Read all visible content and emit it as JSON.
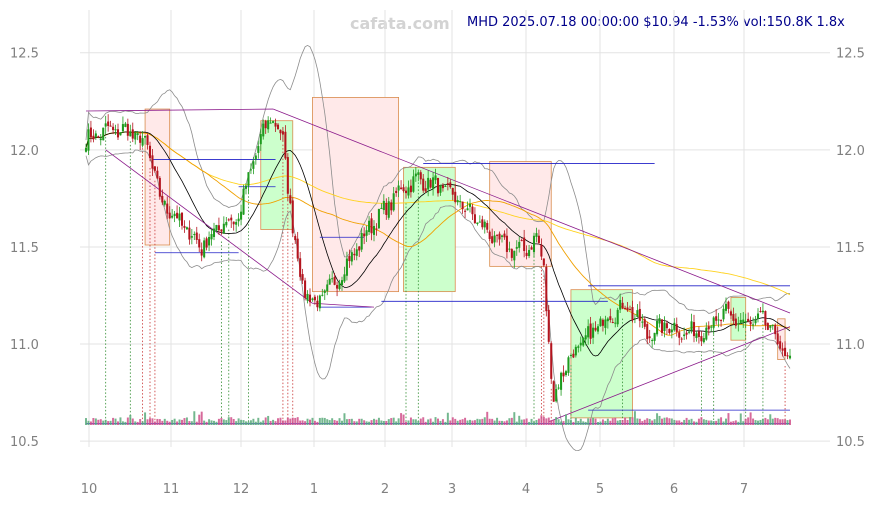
{
  "watermark": "cafata.com",
  "header": {
    "info_line": "MHD 2025.07.18 00:00:00 $10.94 -1.53% vol:150.8K 1.8x"
  },
  "chart_data": {
    "type": "candlestick",
    "symbol": "MHD",
    "last_date": "2025.07.18 00:00:00",
    "last_price": 10.94,
    "change_pct": -1.53,
    "volume": "150.8K",
    "volume_ratio": "1.8x",
    "ylim": [
      10.47,
      12.72
    ],
    "y_ticks": [
      "10.5",
      "11.0",
      "11.5",
      "12.0",
      "12.5"
    ],
    "y_tick_values": [
      10.5,
      11.0,
      11.5,
      12.0,
      12.5
    ],
    "x_ticks": [
      "10",
      "11",
      "12",
      "1",
      "2",
      "3",
      "4",
      "5",
      "6",
      "7"
    ],
    "price_path": [
      {
        "day": 0,
        "price": 12.05
      },
      {
        "day": 8,
        "price": 12.1
      },
      {
        "day": 17,
        "price": 12.1
      },
      {
        "day": 25,
        "price": 12.02
      },
      {
        "day": 30,
        "price": 11.75
      },
      {
        "day": 40,
        "price": 11.6
      },
      {
        "day": 47,
        "price": 11.5
      },
      {
        "day": 55,
        "price": 11.62
      },
      {
        "day": 62,
        "price": 11.65
      },
      {
        "day": 68,
        "price": 11.95
      },
      {
        "day": 75,
        "price": 12.18
      },
      {
        "day": 80,
        "price": 12.05
      },
      {
        "day": 84,
        "price": 11.6
      },
      {
        "day": 88,
        "price": 11.3
      },
      {
        "day": 93,
        "price": 11.2
      },
      {
        "day": 100,
        "price": 11.3
      },
      {
        "day": 108,
        "price": 11.45
      },
      {
        "day": 115,
        "price": 11.6
      },
      {
        "day": 122,
        "price": 11.7
      },
      {
        "day": 128,
        "price": 11.8
      },
      {
        "day": 135,
        "price": 11.85
      },
      {
        "day": 142,
        "price": 11.82
      },
      {
        "day": 150,
        "price": 11.75
      },
      {
        "day": 158,
        "price": 11.65
      },
      {
        "day": 165,
        "price": 11.55
      },
      {
        "day": 170,
        "price": 11.5
      },
      {
        "day": 178,
        "price": 11.48
      },
      {
        "day": 183,
        "price": 11.55
      },
      {
        "day": 186,
        "price": 11.4
      },
      {
        "day": 188,
        "price": 11.0
      },
      {
        "day": 190,
        "price": 10.7
      },
      {
        "day": 193,
        "price": 10.85
      },
      {
        "day": 198,
        "price": 10.95
      },
      {
        "day": 205,
        "price": 11.05
      },
      {
        "day": 212,
        "price": 11.15
      },
      {
        "day": 220,
        "price": 11.2
      },
      {
        "day": 228,
        "price": 11.05
      },
      {
        "day": 236,
        "price": 11.1
      },
      {
        "day": 244,
        "price": 11.05
      },
      {
        "day": 252,
        "price": 11.08
      },
      {
        "day": 260,
        "price": 11.15
      },
      {
        "day": 268,
        "price": 11.1
      },
      {
        "day": 275,
        "price": 11.12
      },
      {
        "day": 280,
        "price": 11.05
      },
      {
        "day": 283,
        "price": 10.94
      }
    ],
    "buy_zones": [
      {
        "x0": 71,
        "x1": 84,
        "y0": 11.59,
        "y1": 12.15
      },
      {
        "x0": 129,
        "x1": 150,
        "y0": 11.27,
        "y1": 11.91
      },
      {
        "x0": 197,
        "x1": 222,
        "y0": 10.62,
        "y1": 11.28
      },
      {
        "x0": 262,
        "x1": 268,
        "y0": 11.02,
        "y1": 11.24
      }
    ],
    "sell_zones": [
      {
        "x0": 24,
        "x1": 34,
        "y0": 11.51,
        "y1": 12.21
      },
      {
        "x0": 92,
        "x1": 127,
        "y0": 11.27,
        "y1": 12.27
      },
      {
        "x0": 164,
        "x1": 189,
        "y0": 11.4,
        "y1": 11.94
      },
      {
        "x0": 281,
        "x1": 284,
        "y0": 10.92,
        "y1": 11.13
      }
    ],
    "levels": [
      {
        "x0": 27,
        "x1": 77,
        "y": 11.95
      },
      {
        "x0": 62,
        "x1": 77,
        "y": 11.81
      },
      {
        "x0": 28,
        "x1": 62,
        "y": 11.47
      },
      {
        "x0": 95,
        "x1": 113,
        "y": 11.55
      },
      {
        "x0": 95,
        "x1": 116,
        "y": 11.19
      },
      {
        "x0": 137,
        "x1": 231,
        "y": 11.93
      },
      {
        "x0": 120,
        "x1": 212,
        "y": 11.22
      },
      {
        "x0": 204,
        "x1": 286,
        "y": 11.3
      },
      {
        "x0": 204,
        "x1": 286,
        "y": 10.66
      },
      {
        "x0": 0,
        "x1": 286,
        "y": 10.59
      }
    ],
    "trend_lines": [
      {
        "x0": 0,
        "y0": 12.2,
        "x1": 76,
        "y1": 12.21
      },
      {
        "x0": 76,
        "y0": 12.21,
        "x1": 286,
        "y1": 11.16
      },
      {
        "x0": 8,
        "y0": 12.0,
        "x1": 92,
        "y1": 11.21
      },
      {
        "x0": 92,
        "y0": 11.21,
        "x1": 117,
        "y1": 11.19
      },
      {
        "x0": 188,
        "y0": 10.6,
        "x1": 286,
        "y1": 11.09
      }
    ]
  }
}
